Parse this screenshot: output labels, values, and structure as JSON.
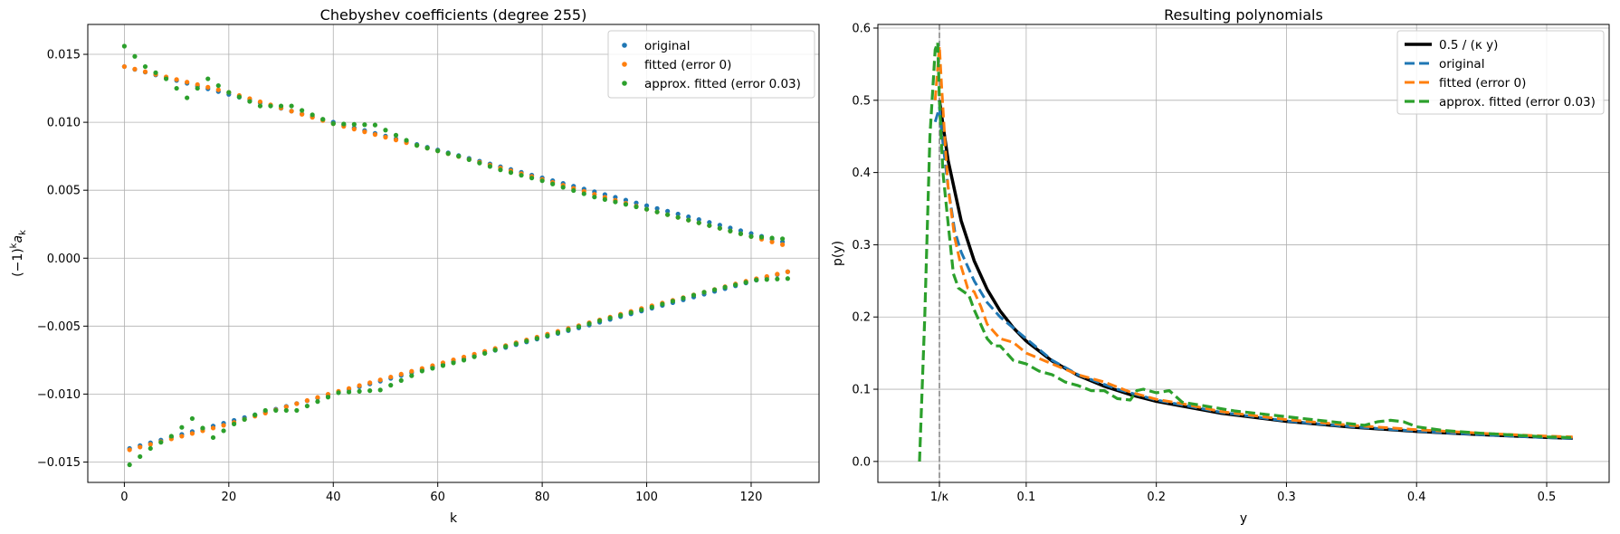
{
  "chart_data": [
    {
      "type": "scatter",
      "title": "Chebyshev coefficients (degree 255)",
      "xlabel": "k",
      "ylabel": "(−1)",
      "ylabel_sup": "k",
      "ylabel_tail": "a",
      "ylabel_sub": "k",
      "xlim": [
        -7,
        133
      ],
      "ylim": [
        -0.0165,
        0.0172
      ],
      "xticks": [
        0,
        20,
        40,
        60,
        80,
        100,
        120
      ],
      "xtick_labels": [
        "0",
        "20",
        "40",
        "60",
        "80",
        "100",
        "120"
      ],
      "yticks": [
        -0.015,
        -0.01,
        -0.005,
        0.0,
        0.005,
        0.01,
        0.015
      ],
      "ytick_labels": [
        "−0.015",
        "−0.010",
        "−0.005",
        "0.000",
        "0.005",
        "0.010",
        "0.015"
      ],
      "grid": true,
      "legend_position": "top-right",
      "k_max": 127,
      "series": [
        {
          "name": "original",
          "color": "#1f77b4",
          "upper": [
            [
              0,
              0.0141
            ],
            [
              127,
              0.0011
            ]
          ],
          "lower": [
            [
              1,
              -0.014
            ],
            [
              127,
              -0.001
            ]
          ],
          "wiggle": []
        },
        {
          "name": "fitted (error 0)",
          "color": "#ff7f0e",
          "upper": [
            [
              0,
              0.0141
            ],
            [
              20,
              0.0122
            ],
            [
              40,
              0.0099
            ],
            [
              60,
              0.0079
            ],
            [
              80,
              0.0058
            ],
            [
              100,
              0.0036
            ],
            [
              120,
              0.0016
            ],
            [
              127,
              0.0009
            ]
          ],
          "lower": [
            [
              1,
              -0.0141
            ],
            [
              20,
              -0.0122
            ],
            [
              40,
              -0.0099
            ],
            [
              60,
              -0.0078
            ],
            [
              80,
              -0.0057
            ],
            [
              100,
              -0.0036
            ],
            [
              120,
              -0.0016
            ],
            [
              127,
              -0.001
            ]
          ],
          "wiggle": []
        },
        {
          "name": "approx. fitted (error 0.03)",
          "color": "#2ca02c",
          "upper": [
            [
              0,
              0.0156
            ],
            [
              4,
              0.0141
            ],
            [
              8,
              0.0132
            ],
            [
              12,
              0.0118
            ],
            [
              16,
              0.0132
            ],
            [
              20,
              0.0122
            ],
            [
              26,
              0.0112
            ],
            [
              32,
              0.0112
            ],
            [
              40,
              0.0099
            ],
            [
              48,
              0.0098
            ],
            [
              56,
              0.0083
            ],
            [
              64,
              0.0075
            ],
            [
              72,
              0.0065
            ],
            [
              80,
              0.0057
            ],
            [
              90,
              0.0045
            ],
            [
              100,
              0.0036
            ],
            [
              110,
              0.0026
            ],
            [
              120,
              0.0016
            ],
            [
              127,
              0.0014
            ]
          ],
          "lower": [
            [
              1,
              -0.0152
            ],
            [
              5,
              -0.014
            ],
            [
              9,
              -0.0131
            ],
            [
              13,
              -0.0118
            ],
            [
              17,
              -0.0132
            ],
            [
              21,
              -0.0122
            ],
            [
              27,
              -0.0112
            ],
            [
              33,
              -0.0112
            ],
            [
              41,
              -0.0099
            ],
            [
              49,
              -0.0097
            ],
            [
              57,
              -0.0083
            ],
            [
              65,
              -0.0075
            ],
            [
              73,
              -0.0065
            ],
            [
              81,
              -0.0057
            ],
            [
              91,
              -0.0046
            ],
            [
              101,
              -0.0036
            ],
            [
              111,
              -0.0025
            ],
            [
              121,
              -0.0016
            ],
            [
              127,
              -0.0015
            ]
          ],
          "wiggle": []
        }
      ]
    },
    {
      "type": "line",
      "title": "Resulting polynomials",
      "xlabel": "y",
      "ylabel": "p(y)",
      "xlim": [
        -0.014,
        0.548
      ],
      "ylim": [
        -0.029,
        0.605
      ],
      "xticks": [
        0.0333,
        0.1,
        0.2,
        0.3,
        0.4,
        0.5
      ],
      "xtick_labels": [
        "1/κ",
        "0.1",
        "0.2",
        "0.3",
        "0.4",
        "0.5"
      ],
      "yticks": [
        0.0,
        0.1,
        0.2,
        0.3,
        0.4,
        0.5,
        0.6
      ],
      "ytick_labels": [
        "0.0",
        "0.1",
        "0.2",
        "0.3",
        "0.4",
        "0.5",
        "0.6"
      ],
      "vline_x": 0.0333,
      "grid": true,
      "legend_position": "top-right",
      "series": [
        {
          "name": "0.5 / (κ y)",
          "color": "#000000",
          "style": "solid",
          "width": 3.5
        },
        {
          "name": "original",
          "color": "#1f77b4",
          "style": "dashed",
          "width": 3
        },
        {
          "name": "fitted (error 0)",
          "color": "#ff7f0e",
          "style": "dashed",
          "width": 3
        },
        {
          "name": "approx. fitted (error 0.03)",
          "color": "#2ca02c",
          "style": "dashed",
          "width": 3.2
        }
      ],
      "curves": {
        "reference": [
          [
            0.0333,
            0.5
          ],
          [
            0.04,
            0.4167
          ],
          [
            0.05,
            0.3333
          ],
          [
            0.06,
            0.2778
          ],
          [
            0.07,
            0.2381
          ],
          [
            0.08,
            0.2083
          ],
          [
            0.09,
            0.1852
          ],
          [
            0.1,
            0.1667
          ],
          [
            0.12,
            0.1389
          ],
          [
            0.14,
            0.119
          ],
          [
            0.16,
            0.1042
          ],
          [
            0.18,
            0.0926
          ],
          [
            0.2,
            0.0833
          ],
          [
            0.25,
            0.0667
          ],
          [
            0.3,
            0.0556
          ],
          [
            0.35,
            0.0476
          ],
          [
            0.4,
            0.0417
          ],
          [
            0.45,
            0.037
          ],
          [
            0.5,
            0.0333
          ],
          [
            0.52,
            0.032
          ]
        ],
        "original": [
          [
            0.03,
            0.47
          ],
          [
            0.0333,
            0.49
          ],
          [
            0.036,
            0.44
          ],
          [
            0.04,
            0.38
          ],
          [
            0.045,
            0.32
          ],
          [
            0.05,
            0.29
          ],
          [
            0.06,
            0.25
          ],
          [
            0.07,
            0.22
          ],
          [
            0.08,
            0.2
          ],
          [
            0.1,
            0.17
          ],
          [
            0.12,
            0.14
          ],
          [
            0.14,
            0.12
          ],
          [
            0.17,
            0.1
          ],
          [
            0.2,
            0.085
          ],
          [
            0.25,
            0.068
          ],
          [
            0.3,
            0.056
          ],
          [
            0.35,
            0.048
          ],
          [
            0.4,
            0.042
          ],
          [
            0.45,
            0.037
          ],
          [
            0.5,
            0.033
          ],
          [
            0.52,
            0.032
          ]
        ],
        "fitted": [
          [
            0.03,
            0.5
          ],
          [
            0.0333,
            0.575
          ],
          [
            0.035,
            0.52
          ],
          [
            0.038,
            0.43
          ],
          [
            0.04,
            0.38
          ],
          [
            0.045,
            0.31
          ],
          [
            0.05,
            0.27
          ],
          [
            0.055,
            0.24
          ],
          [
            0.06,
            0.235
          ],
          [
            0.065,
            0.215
          ],
          [
            0.07,
            0.19
          ],
          [
            0.08,
            0.17
          ],
          [
            0.09,
            0.165
          ],
          [
            0.1,
            0.15
          ],
          [
            0.12,
            0.135
          ],
          [
            0.14,
            0.12
          ],
          [
            0.16,
            0.11
          ],
          [
            0.18,
            0.096
          ],
          [
            0.2,
            0.086
          ],
          [
            0.22,
            0.08
          ],
          [
            0.25,
            0.069
          ],
          [
            0.3,
            0.058
          ],
          [
            0.35,
            0.05
          ],
          [
            0.4,
            0.044
          ],
          [
            0.45,
            0.039
          ],
          [
            0.5,
            0.035
          ],
          [
            0.52,
            0.034
          ]
        ],
        "approx": [
          [
            0.018,
            0.0
          ],
          [
            0.022,
            0.2
          ],
          [
            0.026,
            0.45
          ],
          [
            0.03,
            0.57
          ],
          [
            0.032,
            0.58
          ],
          [
            0.0333,
            0.5
          ],
          [
            0.036,
            0.4
          ],
          [
            0.04,
            0.33
          ],
          [
            0.044,
            0.26
          ],
          [
            0.048,
            0.24
          ],
          [
            0.052,
            0.235
          ],
          [
            0.056,
            0.23
          ],
          [
            0.06,
            0.21
          ],
          [
            0.065,
            0.19
          ],
          [
            0.07,
            0.17
          ],
          [
            0.075,
            0.16
          ],
          [
            0.08,
            0.16
          ],
          [
            0.085,
            0.15
          ],
          [
            0.09,
            0.14
          ],
          [
            0.1,
            0.135
          ],
          [
            0.11,
            0.125
          ],
          [
            0.12,
            0.12
          ],
          [
            0.13,
            0.11
          ],
          [
            0.14,
            0.105
          ],
          [
            0.15,
            0.098
          ],
          [
            0.16,
            0.098
          ],
          [
            0.17,
            0.087
          ],
          [
            0.18,
            0.085
          ],
          [
            0.185,
            0.098
          ],
          [
            0.19,
            0.1
          ],
          [
            0.2,
            0.095
          ],
          [
            0.21,
            0.098
          ],
          [
            0.22,
            0.082
          ],
          [
            0.24,
            0.076
          ],
          [
            0.26,
            0.07
          ],
          [
            0.28,
            0.066
          ],
          [
            0.3,
            0.062
          ],
          [
            0.32,
            0.058
          ],
          [
            0.34,
            0.054
          ],
          [
            0.36,
            0.05
          ],
          [
            0.37,
            0.055
          ],
          [
            0.38,
            0.057
          ],
          [
            0.39,
            0.055
          ],
          [
            0.4,
            0.048
          ],
          [
            0.42,
            0.043
          ],
          [
            0.45,
            0.039
          ],
          [
            0.48,
            0.036
          ],
          [
            0.5,
            0.034
          ],
          [
            0.52,
            0.033
          ]
        ]
      }
    }
  ]
}
